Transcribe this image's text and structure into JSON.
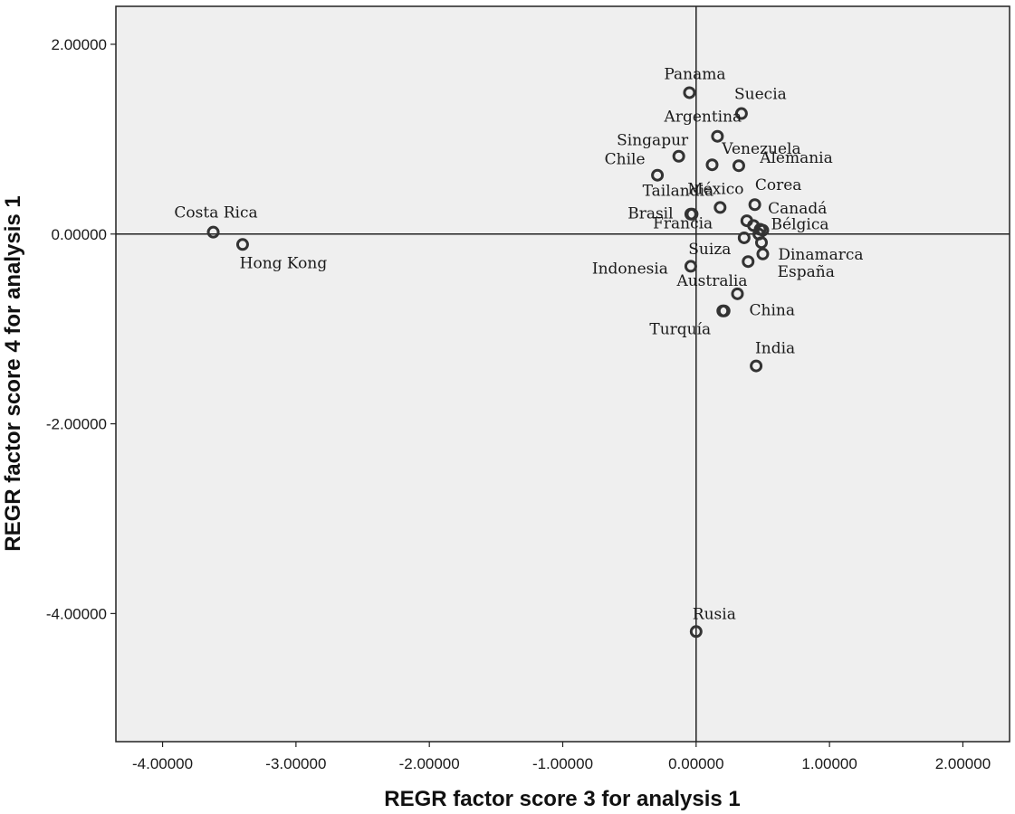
{
  "chart_data": {
    "type": "scatter",
    "xlabel": "REGR factor score   3 for analysis 1",
    "ylabel": "REGR factor score   4 for analysis 1",
    "xlim": [
      -4.35,
      2.35
    ],
    "ylim": [
      -5.35,
      2.4
    ],
    "x_ticks": [
      {
        "value": -4,
        "label": "-4.00000"
      },
      {
        "value": -3,
        "label": "-3.00000"
      },
      {
        "value": -2,
        "label": "-2.00000"
      },
      {
        "value": -1,
        "label": "-1.00000"
      },
      {
        "value": 0,
        "label": "0.00000"
      },
      {
        "value": 1,
        "label": "1.00000"
      },
      {
        "value": 2,
        "label": "2.00000"
      }
    ],
    "y_ticks": [
      {
        "value": 2,
        "label": "2.00000"
      },
      {
        "value": 0,
        "label": "0.00000"
      },
      {
        "value": -2,
        "label": "-2.00000"
      },
      {
        "value": -4,
        "label": "-4.00000"
      }
    ],
    "reference_lines": {
      "x": 0,
      "y": 0
    },
    "grid": false,
    "colors": {
      "plot_background": "#efefef",
      "marker": "#333333",
      "axis": "#222222"
    },
    "points": [
      {
        "label": "Costa Rica",
        "x": -3.62,
        "y": 0.02
      },
      {
        "label": "Hong Kong",
        "x": -3.4,
        "y": -0.11
      },
      {
        "label": "Panama",
        "x": -0.05,
        "y": 1.49
      },
      {
        "label": "Suecia",
        "x": 0.34,
        "y": 1.27
      },
      {
        "label": "Argentina",
        "x": 0.16,
        "y": 1.03
      },
      {
        "label": "Alemania",
        "x": 0.12,
        "y": 0.73
      },
      {
        "label": "Singapur",
        "x": -0.13,
        "y": 0.82
      },
      {
        "label": "Venezuela",
        "x": 0.32,
        "y": 0.72
      },
      {
        "label": "Chile",
        "x": -0.29,
        "y": 0.62
      },
      {
        "label": "Corea",
        "x": 0.44,
        "y": 0.31
      },
      {
        "label": "Tailandia",
        "x": -0.04,
        "y": 0.21
      },
      {
        "label": "México",
        "x": 0.18,
        "y": 0.28
      },
      {
        "label": "Canadá",
        "x": 0.38,
        "y": 0.14
      },
      {
        "label": "Brasil",
        "x": -0.03,
        "y": 0.21
      },
      {
        "label": "Bélgica",
        "x": 0.48,
        "y": 0.05
      },
      {
        "label": "Francia",
        "x": 0.43,
        "y": 0.09
      },
      {
        "label": "Suiza",
        "x": 0.36,
        "y": -0.04
      },
      {
        "label": "Dinamarca",
        "x": 0.5,
        "y": -0.21
      },
      {
        "label": "Indonesia",
        "x": -0.04,
        "y": -0.34
      },
      {
        "label": "España",
        "x": 0.39,
        "y": -0.29
      },
      {
        "label": "Australia",
        "x": 0.31,
        "y": -0.63
      },
      {
        "label": "China",
        "x": 0.21,
        "y": -0.81
      },
      {
        "label": "Turquía",
        "x": 0.2,
        "y": -0.81
      },
      {
        "label": "India",
        "x": 0.45,
        "y": -1.39
      },
      {
        "label": "Rusia",
        "x": 0.0,
        "y": -4.19
      }
    ],
    "extra_markers": [
      {
        "x": 0.5,
        "y": 0.04
      },
      {
        "x": 0.47,
        "y": 0.0
      },
      {
        "x": 0.49,
        "y": -0.09
      }
    ]
  }
}
